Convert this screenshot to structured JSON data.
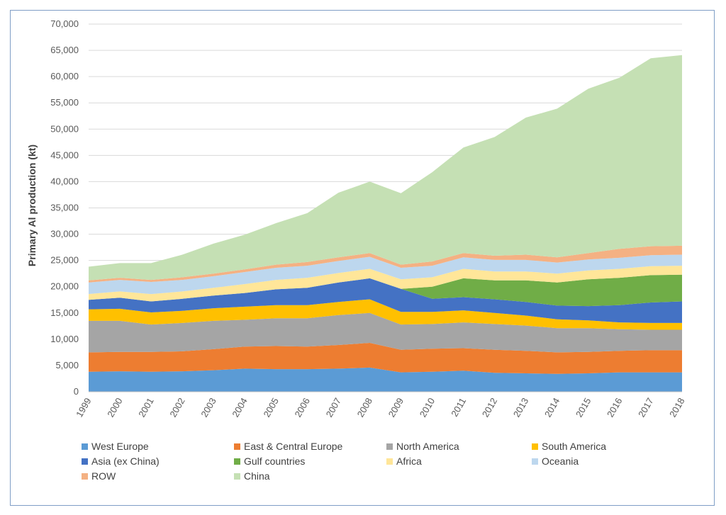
{
  "chart_data": {
    "type": "area",
    "stacked": true,
    "title": "",
    "xlabel": "",
    "ylabel": "Primary Al production (kt)",
    "ylim": [
      0,
      70000
    ],
    "y_ticks": [
      "0",
      "5,000",
      "10,000",
      "15,000",
      "20,000",
      "25,000",
      "30,000",
      "35,000",
      "40,000",
      "45,000",
      "50,000",
      "55,000",
      "60,000",
      "65,000",
      "70,000"
    ],
    "categories": [
      "1999",
      "2000",
      "2001",
      "2002",
      "2003",
      "2004",
      "2005",
      "2006",
      "2007",
      "2008",
      "2009",
      "2010",
      "2011",
      "2012",
      "2013",
      "2014",
      "2015",
      "2016",
      "2017",
      "2018"
    ],
    "legend_position": "bottom",
    "series": [
      {
        "name": "West Europe",
        "color": "#5b9bd5",
        "values": [
          3800,
          3900,
          3800,
          3900,
          4100,
          4400,
          4300,
          4300,
          4400,
          4600,
          3700,
          3800,
          4000,
          3600,
          3500,
          3400,
          3500,
          3700,
          3700,
          3700
        ]
      },
      {
        "name": "East & Central Europe",
        "color": "#ed7d31",
        "values": [
          3700,
          3700,
          3800,
          3800,
          4000,
          4200,
          4400,
          4300,
          4500,
          4700,
          4300,
          4400,
          4300,
          4400,
          4300,
          4100,
          4100,
          4100,
          4200,
          4200
        ]
      },
      {
        "name": "North America",
        "color": "#a5a5a5",
        "values": [
          6000,
          5900,
          5200,
          5400,
          5400,
          5100,
          5300,
          5400,
          5700,
          5700,
          4800,
          4700,
          4900,
          4900,
          4800,
          4600,
          4500,
          4100,
          3900,
          3900
        ]
      },
      {
        "name": "South America",
        "color": "#ffc000",
        "values": [
          2200,
          2300,
          2300,
          2300,
          2400,
          2500,
          2500,
          2500,
          2500,
          2600,
          2400,
          2300,
          2300,
          2100,
          1900,
          1700,
          1500,
          1300,
          1300,
          1300
        ]
      },
      {
        "name": "Asia (ex China)",
        "color": "#4472c4",
        "values": [
          1800,
          2100,
          2100,
          2300,
          2400,
          2600,
          3000,
          3300,
          3700,
          4000,
          4400,
          2500,
          2500,
          2600,
          2600,
          2600,
          2700,
          3300,
          3900,
          4100
        ]
      },
      {
        "name": "Gulf countries",
        "color": "#70ad47",
        "values": [
          0,
          0,
          0,
          0,
          0,
          0,
          0,
          0,
          0,
          0,
          0,
          2300,
          3600,
          3600,
          4100,
          4400,
          5100,
          5200,
          5200,
          5100
        ]
      },
      {
        "name": "Africa",
        "color": "#ffe699",
        "values": [
          1100,
          1200,
          1400,
          1400,
          1500,
          1700,
          1800,
          1900,
          1800,
          1800,
          1800,
          1800,
          1800,
          1700,
          1700,
          1700,
          1700,
          1700,
          1700,
          1700
        ]
      },
      {
        "name": "Oceania",
        "color": "#bdd7ee",
        "values": [
          2200,
          2200,
          2300,
          2200,
          2200,
          2300,
          2300,
          2300,
          2300,
          2300,
          2200,
          2200,
          2200,
          2200,
          2200,
          2100,
          2100,
          2100,
          2100,
          2100
        ]
      },
      {
        "name": "ROW",
        "color": "#f4b183",
        "values": [
          400,
          400,
          400,
          500,
          500,
          500,
          600,
          700,
          700,
          700,
          600,
          800,
          800,
          800,
          1000,
          1000,
          1200,
          1700,
          1700,
          1700
        ]
      },
      {
        "name": "China",
        "color": "#c5e0b4",
        "values": [
          2600,
          2800,
          3200,
          4300,
          5700,
          6600,
          7900,
          9300,
          12300,
          13600,
          13600,
          17000,
          20100,
          22600,
          26100,
          28300,
          31300,
          32600,
          35800,
          36300
        ]
      }
    ]
  }
}
